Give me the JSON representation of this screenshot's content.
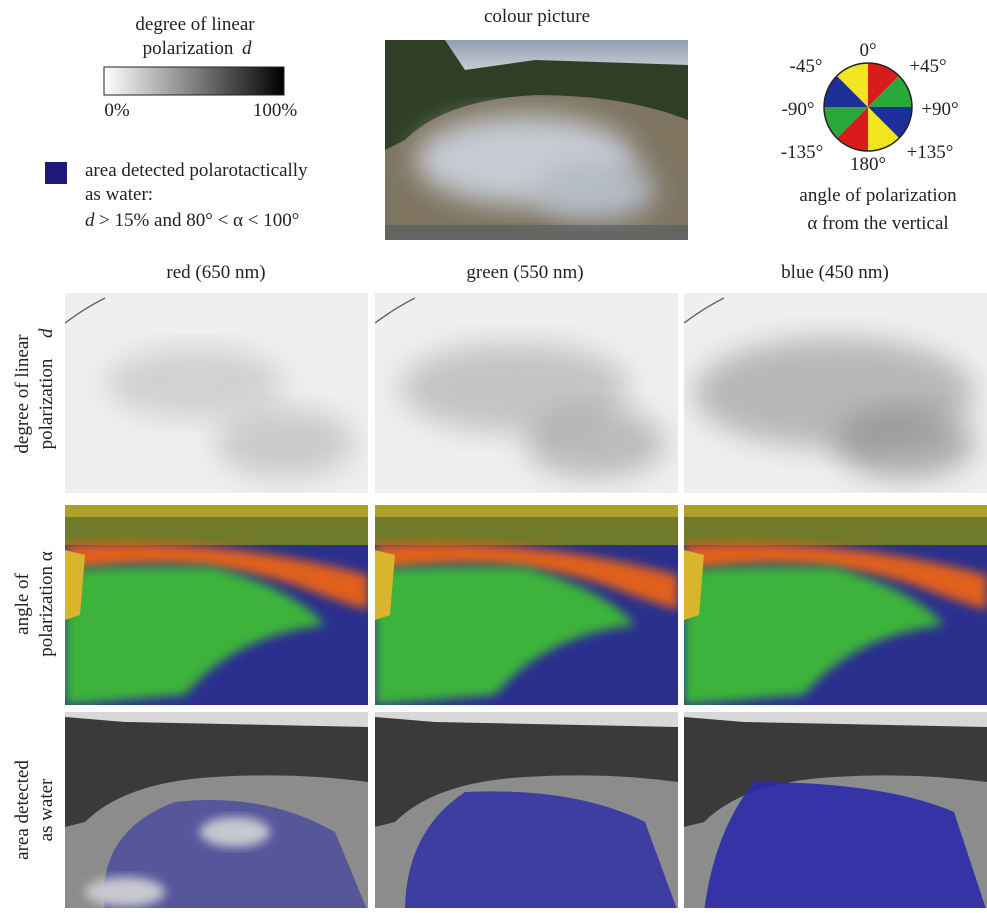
{
  "legend_d": {
    "title_line1": "degree of linear",
    "title_line2": "polarization",
    "title_var": "d",
    "min_label": "0%",
    "max_label": "100%"
  },
  "colour_picture": {
    "title": "colour picture"
  },
  "water_legend": {
    "line1": "area detected polarotactically",
    "line2": "as water:",
    "var": "d",
    "condition": "> 15%  and  80° < α < 100°"
  },
  "angle_wheel": {
    "labels": [
      "0°",
      "+45°",
      "+90°",
      "+135°",
      "180°",
      "-135°",
      "-90°",
      "-45°"
    ],
    "caption_line1": "angle of polarization",
    "caption_line2": "α from the vertical"
  },
  "columns": [
    "red (650 nm)",
    "green (550 nm)",
    "blue (450 nm)"
  ],
  "rows": [
    {
      "line1": "degree of linear",
      "line2": "polarization",
      "var": "d"
    },
    {
      "line1": "angle of",
      "line2": "polarization α"
    },
    {
      "line1": "area detected",
      "line2": "as water"
    }
  ]
}
